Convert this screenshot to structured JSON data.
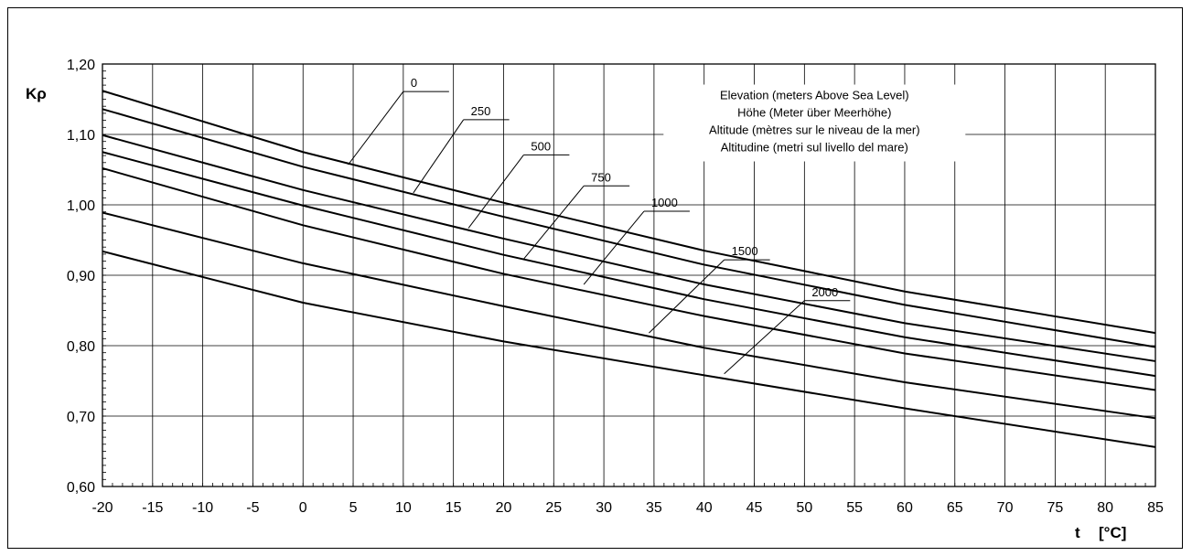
{
  "chart_data": {
    "type": "line",
    "xlabel": "t",
    "xunit": "[°C]",
    "ylabel": "Kρ",
    "xlim": [
      -20,
      85
    ],
    "ylim": [
      0.6,
      1.2
    ],
    "x_ticks": [
      -20,
      -15,
      -10,
      -5,
      0,
      5,
      10,
      15,
      20,
      25,
      30,
      35,
      40,
      45,
      50,
      55,
      60,
      65,
      70,
      75,
      80,
      85
    ],
    "x_tick_labels": [
      "-20",
      "-15",
      "-10",
      "-5",
      "0",
      "5",
      "10",
      "15",
      "20",
      "25",
      "30",
      "35",
      "40",
      "45",
      "50",
      "55",
      "60",
      "65",
      "70",
      "75",
      "80",
      "85"
    ],
    "y_ticks": [
      0.6,
      0.7,
      0.8,
      0.9,
      1.0,
      1.1,
      1.2
    ],
    "y_tick_labels": [
      "0,60",
      "0,70",
      "0,80",
      "0,90",
      "1,00",
      "1,10",
      "1,20"
    ],
    "grid": true,
    "legend_title_lines": [
      "Elevation (meters Above Sea Level)",
      "Höhe (Meter über Meerhöhe)",
      "Altitude (mètres sur le niveau de la mer)",
      "Altitudine (metri sul livello del mare)"
    ],
    "x": [
      -20,
      0,
      20,
      40,
      60,
      85
    ],
    "series": [
      {
        "name": "0",
        "values": [
          1.162,
          1.075,
          1.003,
          0.935,
          0.877,
          0.818
        ],
        "label_at": [
          4.5,
          1.057
        ],
        "label_text_x": 10
      },
      {
        "name": "250",
        "values": [
          1.136,
          1.054,
          0.983,
          0.915,
          0.858,
          0.798
        ],
        "label_at": [
          11,
          1.017
        ],
        "label_text_x": 16
      },
      {
        "name": "500",
        "values": [
          1.099,
          1.021,
          0.952,
          0.887,
          0.832,
          0.778
        ],
        "label_at": [
          16.5,
          0.967
        ],
        "label_text_x": 22
      },
      {
        "name": "750",
        "values": [
          1.075,
          0.999,
          0.929,
          0.866,
          0.812,
          0.757
        ],
        "label_at": [
          22,
          0.923
        ],
        "label_text_x": 28
      },
      {
        "name": "1000",
        "values": [
          1.052,
          0.971,
          0.902,
          0.842,
          0.789,
          0.737
        ],
        "label_at": [
          28,
          0.887
        ],
        "label_text_x": 34
      },
      {
        "name": "1500",
        "values": [
          0.989,
          0.917,
          0.856,
          0.797,
          0.748,
          0.697
        ],
        "label_at": [
          34.5,
          0.818
        ],
        "label_text_x": 42
      },
      {
        "name": "2000",
        "values": [
          0.934,
          0.861,
          0.806,
          0.758,
          0.711,
          0.656
        ],
        "label_at": [
          42,
          0.76
        ],
        "label_text_x": 50
      }
    ]
  }
}
